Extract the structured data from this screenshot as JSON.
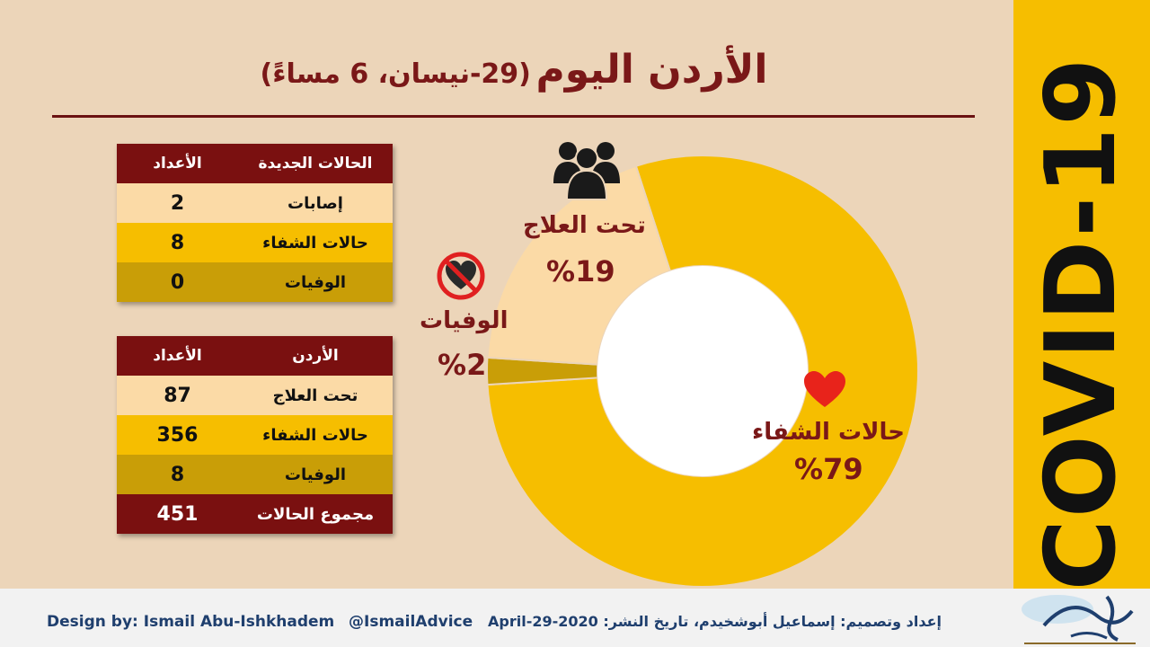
{
  "title": {
    "main": "الأردن اليوم",
    "sub": "(29-نيسان، 6 مساءً)"
  },
  "side_band": {
    "text": "COVID-19"
  },
  "new_cases": {
    "headers": [
      "الحالات الجديدة",
      "الأعداد"
    ],
    "rows": [
      {
        "label": "إصابات",
        "value": "2"
      },
      {
        "label": "حالات الشفاء",
        "value": "8"
      },
      {
        "label": "الوفيات",
        "value": "0"
      }
    ]
  },
  "jordan": {
    "headers": [
      "الأردن",
      "الأعداد"
    ],
    "rows": [
      {
        "label": "تحت العلاج",
        "value": "87"
      },
      {
        "label": "حالات الشفاء",
        "value": "356"
      },
      {
        "label": "الوفيات",
        "value": "8"
      },
      {
        "label": "مجموع الحالات",
        "value": "451"
      }
    ]
  },
  "chart_data": {
    "type": "pie",
    "donut": true,
    "categories": [
      "حالات الشفاء",
      "الوفيات",
      "تحت العلاج"
    ],
    "values": [
      79,
      2,
      19
    ],
    "labels": [
      "%79",
      "%2",
      "%19"
    ],
    "colors": [
      "#f6be00",
      "#c99e07",
      "#fbdaa6"
    ],
    "icons": [
      "heart-icon",
      "no-heart-icon",
      "people-icon"
    ],
    "legend": "none"
  },
  "footer": {
    "credit_en": "Design by: Ismail Abu-Ishkhadem",
    "handle": "@IsmailAdvice",
    "credit_ar": "إعداد وتصميم: إسماعيل أبوشخيدم، تاريخ النشر: 2020-April-29"
  },
  "colors": {
    "maroon": "#7a1010",
    "yellow": "#f6be00",
    "light": "#fbdaa6",
    "olive": "#c99e07",
    "background": "#ecd5b9"
  }
}
